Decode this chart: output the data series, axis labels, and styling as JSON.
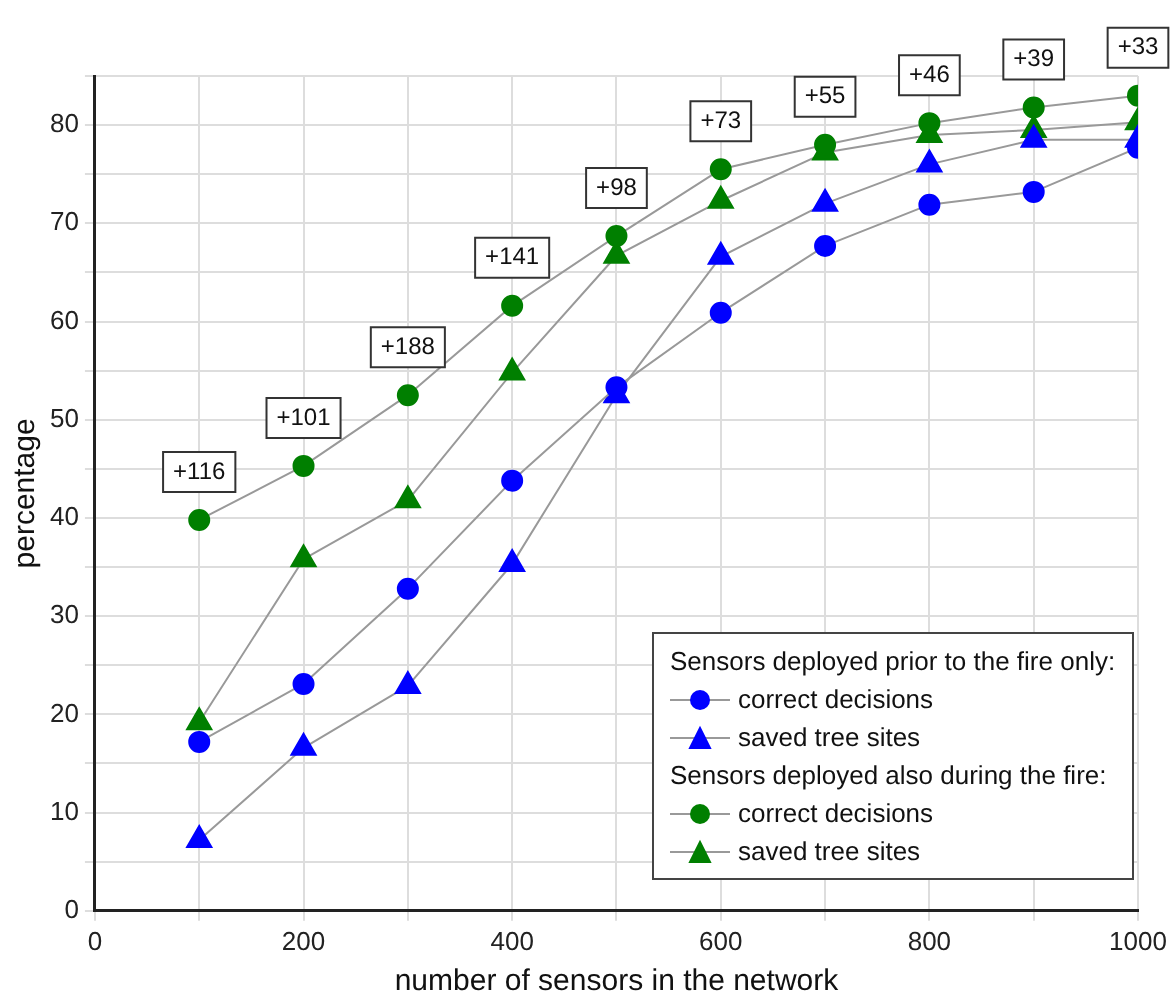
{
  "chart_data": {
    "type": "line",
    "xlabel": "number of sensors in the network",
    "ylabel": "percentage",
    "x": [
      100,
      200,
      300,
      400,
      500,
      600,
      700,
      800,
      900,
      1000
    ],
    "series": [
      {
        "name": "correct decisions",
        "color": "#0000ff",
        "marker": "circle",
        "values": [
          17.2,
          23.1,
          32.8,
          43.8,
          53.3,
          60.9,
          67.7,
          71.9,
          73.2,
          77.7
        ]
      },
      {
        "name": "saved tree sites",
        "color": "#0000ff",
        "marker": "triangle",
        "values": [
          7.2,
          16.6,
          22.9,
          35.3,
          52.5,
          66.6,
          72,
          76,
          78.5,
          78.5
        ]
      },
      {
        "name": "correct decisions",
        "color": "#007f00",
        "marker": "circle",
        "values": [
          39.8,
          45.3,
          52.5,
          61.6,
          68.7,
          75.5,
          78,
          80.2,
          81.8,
          83
        ]
      },
      {
        "name": "saved tree sites",
        "color": "#007f00",
        "marker": "triangle",
        "values": [
          19.2,
          35.8,
          41.8,
          54.8,
          66.7,
          72.3,
          77.2,
          79,
          79.5,
          80.3
        ]
      }
    ],
    "xlim": [
      0,
      1000
    ],
    "xticks": [
      0,
      {
        "value": 100,
        "label": null
      },
      200,
      {
        "value": 300,
        "label": null
      },
      400,
      {
        "value": 500,
        "label": null
      },
      600,
      {
        "value": 700,
        "label": null
      },
      800,
      {
        "value": 900,
        "label": null
      },
      1000
    ],
    "ylim": [
      0,
      85
    ],
    "yticks": [
      0,
      {
        "value": 5,
        "label": null
      },
      10,
      {
        "value": 15,
        "label": null
      },
      20,
      {
        "value": 25,
        "label": null
      },
      30,
      {
        "value": 35,
        "label": null
      },
      40,
      {
        "value": 45,
        "label": null
      },
      50,
      {
        "value": 55,
        "label": null
      },
      60,
      {
        "value": 65,
        "label": null
      },
      70,
      {
        "value": 75,
        "label": null
      },
      80,
      {
        "value": 85,
        "label": null
      }
    ],
    "grid": true,
    "legend": "bottom right",
    "line_style": "solid",
    "annotations": [
      "Sensors deployed prior to the fire only:",
      "Sensors deployed also during the fire:",
      {
        "text": "+116",
        "x": 100,
        "y": 39.8
      },
      {
        "text": "+101",
        "x": 200,
        "y": 45.3
      },
      {
        "text": "+188",
        "x": 300,
        "y": 52.5
      },
      {
        "text": "+141",
        "x": 400,
        "y": 61.6
      },
      {
        "text": "+98",
        "x": 500,
        "y": 68.7
      },
      {
        "text": "+73",
        "x": 600,
        "y": 75.5
      },
      {
        "text": "+55",
        "x": 700,
        "y": 78
      },
      {
        "text": "+46",
        "x": 800,
        "y": 80.2
      },
      {
        "text": "+39",
        "x": 900,
        "y": 81.8
      },
      {
        "text": "+33",
        "x": 1000,
        "y": 83
      }
    ]
  }
}
